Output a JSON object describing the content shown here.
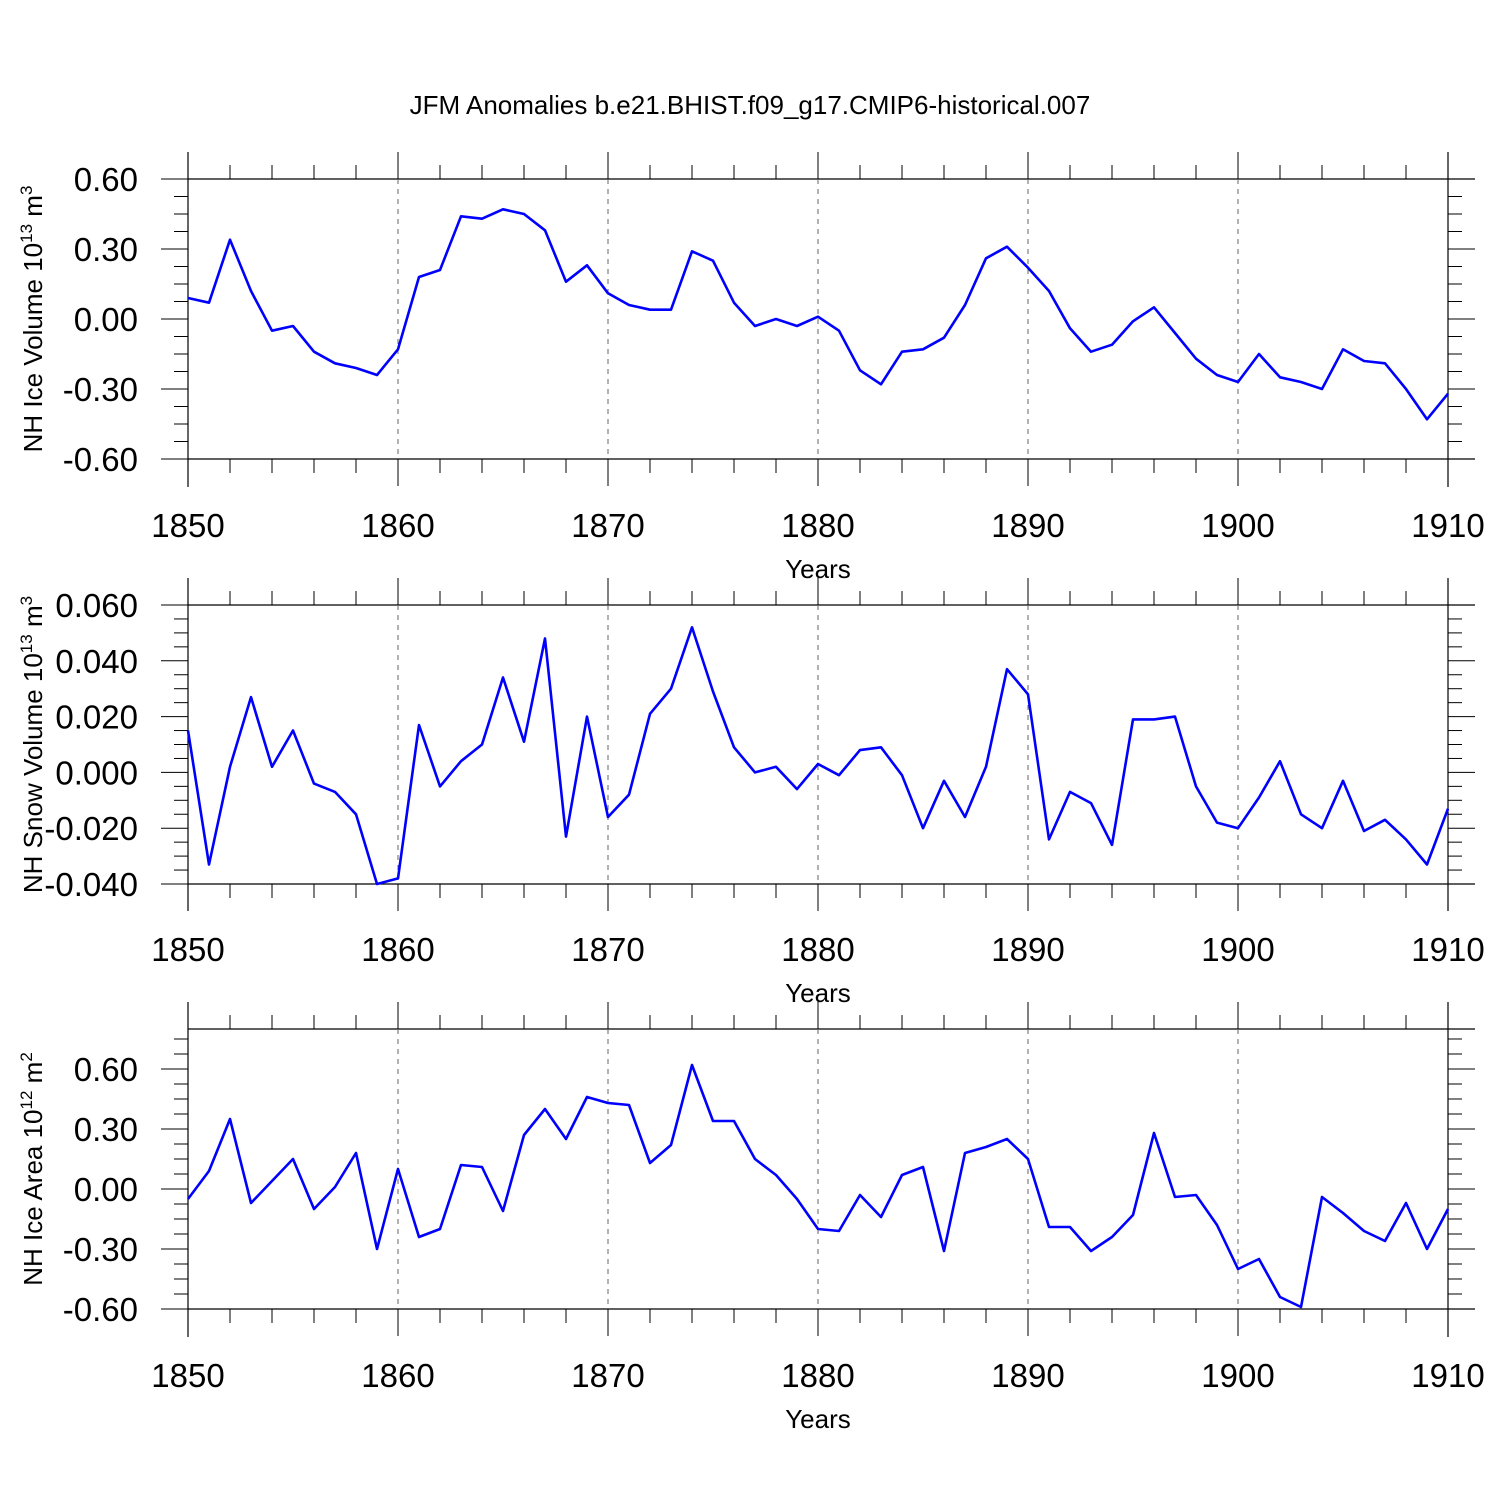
{
  "title": "JFM Anomalies b.e21.BHIST.f09_g17.CMIP6-historical.007",
  "line_color": "#0000ff",
  "chart_data": [
    {
      "type": "line",
      "ylabel": "NH Ice Volume 10",
      "ylabel_exp": "13",
      "ylabel_unit": " m",
      "ylabel_unit_exp": "3",
      "xlabel": "Years",
      "xlim": [
        1850,
        1910
      ],
      "ylim": [
        -0.6,
        0.6
      ],
      "xticks": [
        "1850",
        "1860",
        "1870",
        "1880",
        "1890",
        "1900",
        "1910"
      ],
      "yticks": [
        "0.60",
        "0.30",
        "0.00",
        "-0.30",
        "-0.60"
      ],
      "ytick_values": [
        0.6,
        0.3,
        0.0,
        -0.3,
        -0.6
      ],
      "grid_x": [
        1860,
        1870,
        1880,
        1890,
        1900
      ],
      "x_start": 1850,
      "values": [
        0.09,
        0.07,
        0.34,
        0.12,
        -0.05,
        -0.03,
        -0.14,
        -0.19,
        -0.21,
        -0.24,
        -0.13,
        0.18,
        0.21,
        0.44,
        0.43,
        0.47,
        0.45,
        0.38,
        0.16,
        0.23,
        0.11,
        0.06,
        0.04,
        0.04,
        0.29,
        0.25,
        0.07,
        -0.03,
        0.0,
        -0.03,
        0.01,
        -0.05,
        -0.22,
        -0.28,
        -0.14,
        -0.13,
        -0.08,
        0.06,
        0.26,
        0.31,
        0.22,
        0.12,
        -0.04,
        -0.14,
        -0.11,
        -0.01,
        0.05,
        -0.06,
        -0.17,
        -0.24,
        -0.27,
        -0.15,
        -0.25,
        -0.27,
        -0.3,
        -0.13,
        -0.18,
        -0.19,
        -0.3,
        -0.43,
        -0.32
      ]
    },
    {
      "type": "line",
      "ylabel": "NH Snow Volume 10",
      "ylabel_exp": "13",
      "ylabel_unit": " m",
      "ylabel_unit_exp": "3",
      "xlabel": "Years",
      "xlim": [
        1850,
        1910
      ],
      "ylim": [
        -0.04,
        0.06
      ],
      "xticks": [
        "1850",
        "1860",
        "1870",
        "1880",
        "1890",
        "1900",
        "1910"
      ],
      "yticks": [
        "0.060",
        "0.040",
        "0.020",
        "0.000",
        "-0.020",
        "-0.040"
      ],
      "ytick_values": [
        0.06,
        0.04,
        0.02,
        0.0,
        -0.02,
        -0.04
      ],
      "grid_x": [
        1860,
        1870,
        1880,
        1890,
        1900
      ],
      "x_start": 1850,
      "values": [
        0.015,
        -0.033,
        0.002,
        0.027,
        0.002,
        0.015,
        -0.004,
        -0.007,
        -0.015,
        -0.04,
        -0.038,
        0.017,
        -0.005,
        0.004,
        0.01,
        0.034,
        0.011,
        0.048,
        -0.023,
        0.02,
        -0.016,
        -0.008,
        0.021,
        0.03,
        0.052,
        0.029,
        0.009,
        0.0,
        0.002,
        -0.006,
        0.003,
        -0.001,
        0.008,
        0.009,
        -0.001,
        -0.02,
        -0.003,
        -0.016,
        0.002,
        0.037,
        0.028,
        -0.024,
        -0.007,
        -0.011,
        -0.026,
        0.019,
        0.019,
        0.02,
        -0.005,
        -0.018,
        -0.02,
        -0.009,
        0.004,
        -0.015,
        -0.02,
        -0.003,
        -0.021,
        -0.017,
        -0.024,
        -0.033,
        -0.013
      ]
    },
    {
      "type": "line",
      "ylabel": "NH Ice Area 10",
      "ylabel_exp": "12",
      "ylabel_unit": " m",
      "ylabel_unit_exp": "2",
      "xlabel": "Years",
      "xlim": [
        1850,
        1910
      ],
      "ylim": [
        -0.6,
        0.8
      ],
      "xticks": [
        "1850",
        "1860",
        "1870",
        "1880",
        "1890",
        "1900",
        "1910"
      ],
      "yticks": [
        "0.60",
        "0.30",
        "0.00",
        "-0.30",
        "-0.60"
      ],
      "ytick_values": [
        0.6,
        0.3,
        0.0,
        -0.3,
        -0.6
      ],
      "grid_x": [
        1860,
        1870,
        1880,
        1890,
        1900
      ],
      "x_start": 1850,
      "values": [
        -0.05,
        0.09,
        0.35,
        -0.07,
        0.04,
        0.15,
        -0.1,
        0.01,
        0.18,
        -0.3,
        0.1,
        -0.24,
        -0.2,
        0.12,
        0.11,
        -0.11,
        0.27,
        0.4,
        0.25,
        0.46,
        0.43,
        0.42,
        0.13,
        0.22,
        0.62,
        0.34,
        0.34,
        0.15,
        0.07,
        -0.05,
        -0.2,
        -0.21,
        -0.03,
        -0.14,
        0.07,
        0.11,
        -0.31,
        0.18,
        0.21,
        0.25,
        0.15,
        -0.19,
        -0.19,
        -0.31,
        -0.24,
        -0.13,
        0.28,
        -0.04,
        -0.03,
        -0.18,
        -0.4,
        -0.35,
        -0.54,
        -0.59,
        -0.04,
        -0.12,
        -0.21,
        -0.26,
        -0.07,
        -0.3,
        -0.1
      ]
    }
  ]
}
